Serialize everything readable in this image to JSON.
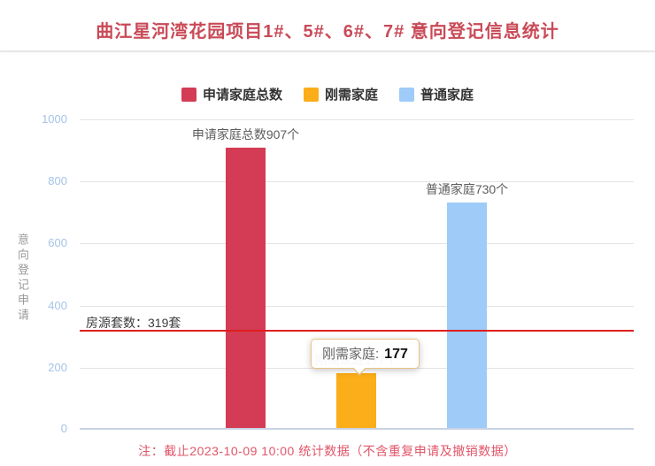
{
  "title": "曲江星河湾花园项目1#、5#、6#、7# 意向登记信息统计",
  "legend": {
    "items": [
      {
        "label": "申请家庭总数",
        "color": "#d33c54"
      },
      {
        "label": "刚需家庭",
        "color": "#fbad1a"
      },
      {
        "label": "普通家庭",
        "color": "#9ecbf8"
      }
    ]
  },
  "y_axis": {
    "name": "意向登记申请",
    "ticks": [
      "1000",
      "800",
      "600",
      "400",
      "200",
      "0"
    ]
  },
  "chart_data": {
    "type": "bar",
    "title": "曲江星河湾花园项目1#、5#、6#、7# 意向登记信息统计",
    "categories": [
      "申请家庭总数",
      "刚需家庭",
      "普通家庭"
    ],
    "values": [
      907,
      177,
      730
    ],
    "colors": [
      "#d33c54",
      "#fbad1a",
      "#9ecbf8"
    ],
    "bar_labels": [
      "申请家庭总数907个",
      "刚需家庭177个",
      "普通家庭730个"
    ],
    "xlabel": "",
    "ylabel": "意向登记申请",
    "ylim": [
      0,
      1000
    ],
    "grid": true,
    "legend_position": "top",
    "reference_line": {
      "value": 319,
      "label": "房源套数：319套",
      "color": "#e01e1e"
    }
  },
  "tooltip": {
    "label": "刚需家庭:",
    "value": "177"
  },
  "note": "注：截止2023-10-09 10:00 统计数据（不含重复申请及撤销数据）"
}
